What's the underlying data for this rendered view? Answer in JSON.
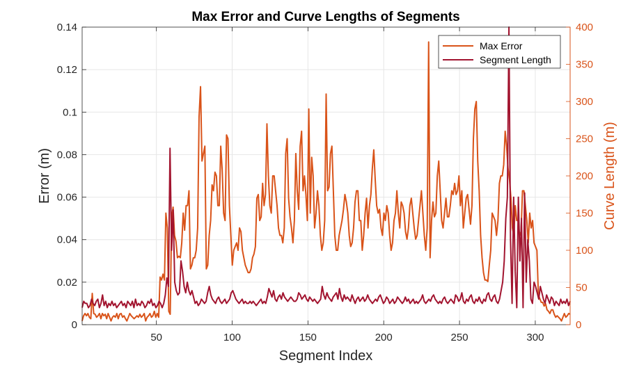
{
  "chart_data": {
    "type": "line",
    "title": "Max Error and Curve Lengths of Segments",
    "xlabel": "Segment Index",
    "ylabel_left": "Error (m)",
    "ylabel_right": "Curve Length (m)",
    "xlim": [
      1,
      323
    ],
    "ylim_left": [
      0,
      0.14
    ],
    "ylim_right": [
      0,
      400
    ],
    "x_ticks": [
      50,
      100,
      150,
      200,
      250,
      300
    ],
    "y_ticks_left": [
      "0",
      "0.02",
      "0.04",
      "0.06",
      "0.08",
      "0.1",
      "0.12",
      "0.14"
    ],
    "y_ticks_right": [
      "0",
      "50",
      "100",
      "150",
      "200",
      "250",
      "300",
      "350",
      "400"
    ],
    "grid": true,
    "legend_position": "top-right",
    "colors": {
      "max_error": "#D95319",
      "segment_length": "#A2142F",
      "right_axis": "#D95319",
      "left_axis": "#262626",
      "grid": "#e6e6e6"
    },
    "series": [
      {
        "name": "Max Error",
        "axis": "right",
        "y": [
          5,
          12,
          15,
          12,
          15,
          10,
          8,
          42,
          15,
          14,
          10,
          12,
          15,
          8,
          15,
          12,
          14,
          8,
          15,
          10,
          5,
          10,
          12,
          10,
          15,
          8,
          14,
          15,
          10,
          12,
          8,
          5,
          10,
          15,
          12,
          10,
          8,
          10,
          12,
          10,
          14,
          10,
          12,
          15,
          5,
          10,
          12,
          15,
          10,
          12,
          18,
          10,
          15,
          10,
          64,
          60,
          68,
          60,
          150,
          130,
          18,
          14,
          145,
          158,
          120,
          112,
          90,
          92,
          90,
          110,
          150,
          127,
          160,
          160,
          180,
          75,
          80,
          90,
          90,
          100,
          130,
          280,
          320,
          220,
          230,
          240,
          75,
          80,
          120,
          140,
          188,
          180,
          205,
          200,
          160,
          160,
          240,
          208,
          150,
          140,
          255,
          250,
          160,
          120,
          80,
          100,
          105,
          110,
          100,
          130,
          125,
          100,
          90,
          80,
          75,
          70,
          70,
          75,
          90,
          95,
          105,
          170,
          175,
          140,
          145,
          190,
          160,
          175,
          270,
          200,
          160,
          150,
          200,
          200,
          180,
          160,
          130,
          120,
          120,
          110,
          130,
          230,
          250,
          170,
          145,
          130,
          110,
          140,
          230,
          180,
          155,
          240,
          260,
          180,
          200,
          175,
          140,
          290,
          150,
          225,
          200,
          130,
          150,
          180,
          160,
          120,
          100,
          110,
          140,
          310,
          180,
          185,
          230,
          240,
          180,
          120,
          100,
          100,
          120,
          130,
          140,
          155,
          175,
          165,
          150,
          120,
          105,
          110,
          130,
          165,
          180,
          180,
          140,
          140,
          100,
          120,
          150,
          170,
          130,
          160,
          175,
          210,
          235,
          195,
          160,
          150,
          155,
          130,
          120,
          150,
          140,
          160,
          150,
          120,
          100,
          110,
          140,
          150,
          180,
          150,
          130,
          165,
          160,
          150,
          125,
          115,
          130,
          160,
          170,
          150,
          130,
          115,
          120,
          140,
          160,
          180,
          150,
          120,
          100,
          130,
          380,
          90,
          140,
          165,
          145,
          150,
          200,
          220,
          180,
          140,
          130,
          150,
          170,
          145,
          145,
          160,
          180,
          175,
          190,
          175,
          180,
          200,
          160,
          180,
          130,
          150,
          170,
          175,
          155,
          135,
          160,
          250,
          290,
          300,
          220,
          180,
          120,
          90,
          70,
          60,
          60,
          58,
          80,
          100,
          150,
          145,
          140,
          120,
          140,
          190,
          200,
          200,
          215,
          260,
          240,
          210,
          195,
          170,
          130,
          120,
          160,
          140,
          140,
          120,
          125,
          180,
          180,
          160,
          140,
          110,
          150,
          130,
          140,
          110,
          105,
          100,
          40,
          35,
          30,
          30,
          25,
          28,
          20,
          18,
          15,
          20,
          20,
          14,
          10,
          12,
          10,
          8,
          5,
          10,
          15,
          10,
          12,
          15,
          14
        ]
      },
      {
        "name": "Segment Length",
        "axis": "left",
        "y": [
          0.008,
          0.011,
          0.01,
          0.01,
          0.008,
          0.009,
          0.012,
          0.01,
          0.009,
          0.011,
          0.012,
          0.008,
          0.01,
          0.014,
          0.009,
          0.011,
          0.008,
          0.01,
          0.009,
          0.011,
          0.009,
          0.01,
          0.008,
          0.009,
          0.01,
          0.011,
          0.009,
          0.01,
          0.008,
          0.011,
          0.01,
          0.009,
          0.011,
          0.008,
          0.012,
          0.009,
          0.01,
          0.009,
          0.011,
          0.01,
          0.008,
          0.009,
          0.011,
          0.01,
          0.012,
          0.009,
          0.01,
          0.008,
          0.009,
          0.011,
          0.01,
          0.008,
          0.01,
          0.014,
          0.022,
          0.018,
          0.083,
          0.035,
          0.054,
          0.02,
          0.016,
          0.014,
          0.015,
          0.03,
          0.025,
          0.018,
          0.015,
          0.02,
          0.016,
          0.014,
          0.016,
          0.013,
          0.01,
          0.011,
          0.009,
          0.01,
          0.012,
          0.011,
          0.01,
          0.011,
          0.015,
          0.018,
          0.014,
          0.012,
          0.011,
          0.01,
          0.012,
          0.013,
          0.011,
          0.01,
          0.011,
          0.012,
          0.01,
          0.011,
          0.012,
          0.015,
          0.016,
          0.014,
          0.012,
          0.011,
          0.01,
          0.011,
          0.012,
          0.01,
          0.011,
          0.01,
          0.01,
          0.011,
          0.01,
          0.011,
          0.01,
          0.009,
          0.01,
          0.011,
          0.012,
          0.01,
          0.011,
          0.01,
          0.013,
          0.017,
          0.015,
          0.013,
          0.016,
          0.012,
          0.011,
          0.013,
          0.014,
          0.012,
          0.015,
          0.013,
          0.012,
          0.011,
          0.012,
          0.013,
          0.012,
          0.011,
          0.011,
          0.012,
          0.015,
          0.014,
          0.012,
          0.013,
          0.014,
          0.012,
          0.011,
          0.013,
          0.012,
          0.011,
          0.012,
          0.011,
          0.01,
          0.011,
          0.012,
          0.018,
          0.014,
          0.012,
          0.015,
          0.013,
          0.012,
          0.011,
          0.013,
          0.014,
          0.015,
          0.012,
          0.017,
          0.013,
          0.011,
          0.014,
          0.012,
          0.013,
          0.012,
          0.011,
          0.014,
          0.012,
          0.01,
          0.012,
          0.013,
          0.011,
          0.012,
          0.013,
          0.011,
          0.012,
          0.014,
          0.012,
          0.011,
          0.01,
          0.011,
          0.012,
          0.011,
          0.013,
          0.014,
          0.012,
          0.01,
          0.011,
          0.013,
          0.012,
          0.01,
          0.011,
          0.012,
          0.01,
          0.011,
          0.013,
          0.012,
          0.011,
          0.01,
          0.011,
          0.013,
          0.011,
          0.012,
          0.01,
          0.011,
          0.012,
          0.01,
          0.011,
          0.01,
          0.011,
          0.012,
          0.014,
          0.011,
          0.01,
          0.011,
          0.012,
          0.011,
          0.013,
          0.014,
          0.012,
          0.011,
          0.01,
          0.011,
          0.01,
          0.012,
          0.013,
          0.011,
          0.01,
          0.011,
          0.012,
          0.011,
          0.01,
          0.014,
          0.013,
          0.011,
          0.012,
          0.015,
          0.011,
          0.01,
          0.012,
          0.011,
          0.013,
          0.014,
          0.011,
          0.01,
          0.012,
          0.011,
          0.013,
          0.011,
          0.01,
          0.012,
          0.011,
          0.014,
          0.015,
          0.012,
          0.011,
          0.013,
          0.014,
          0.011,
          0.01,
          0.012,
          0.016,
          0.02,
          0.03,
          0.05,
          0.06,
          0.14,
          0.04,
          0.01,
          0.06,
          0.025,
          0.008,
          0.06,
          0.03,
          0.05,
          0.008,
          0.062,
          0.02,
          0.04,
          0.03,
          0.012,
          0.01,
          0.02,
          0.018,
          0.015,
          0.012,
          0.018,
          0.015,
          0.012,
          0.01,
          0.014,
          0.012,
          0.01,
          0.013,
          0.012,
          0.009,
          0.011,
          0.01,
          0.009,
          0.012,
          0.01,
          0.011,
          0.01,
          0.012,
          0.009,
          0.011
        ]
      }
    ]
  }
}
